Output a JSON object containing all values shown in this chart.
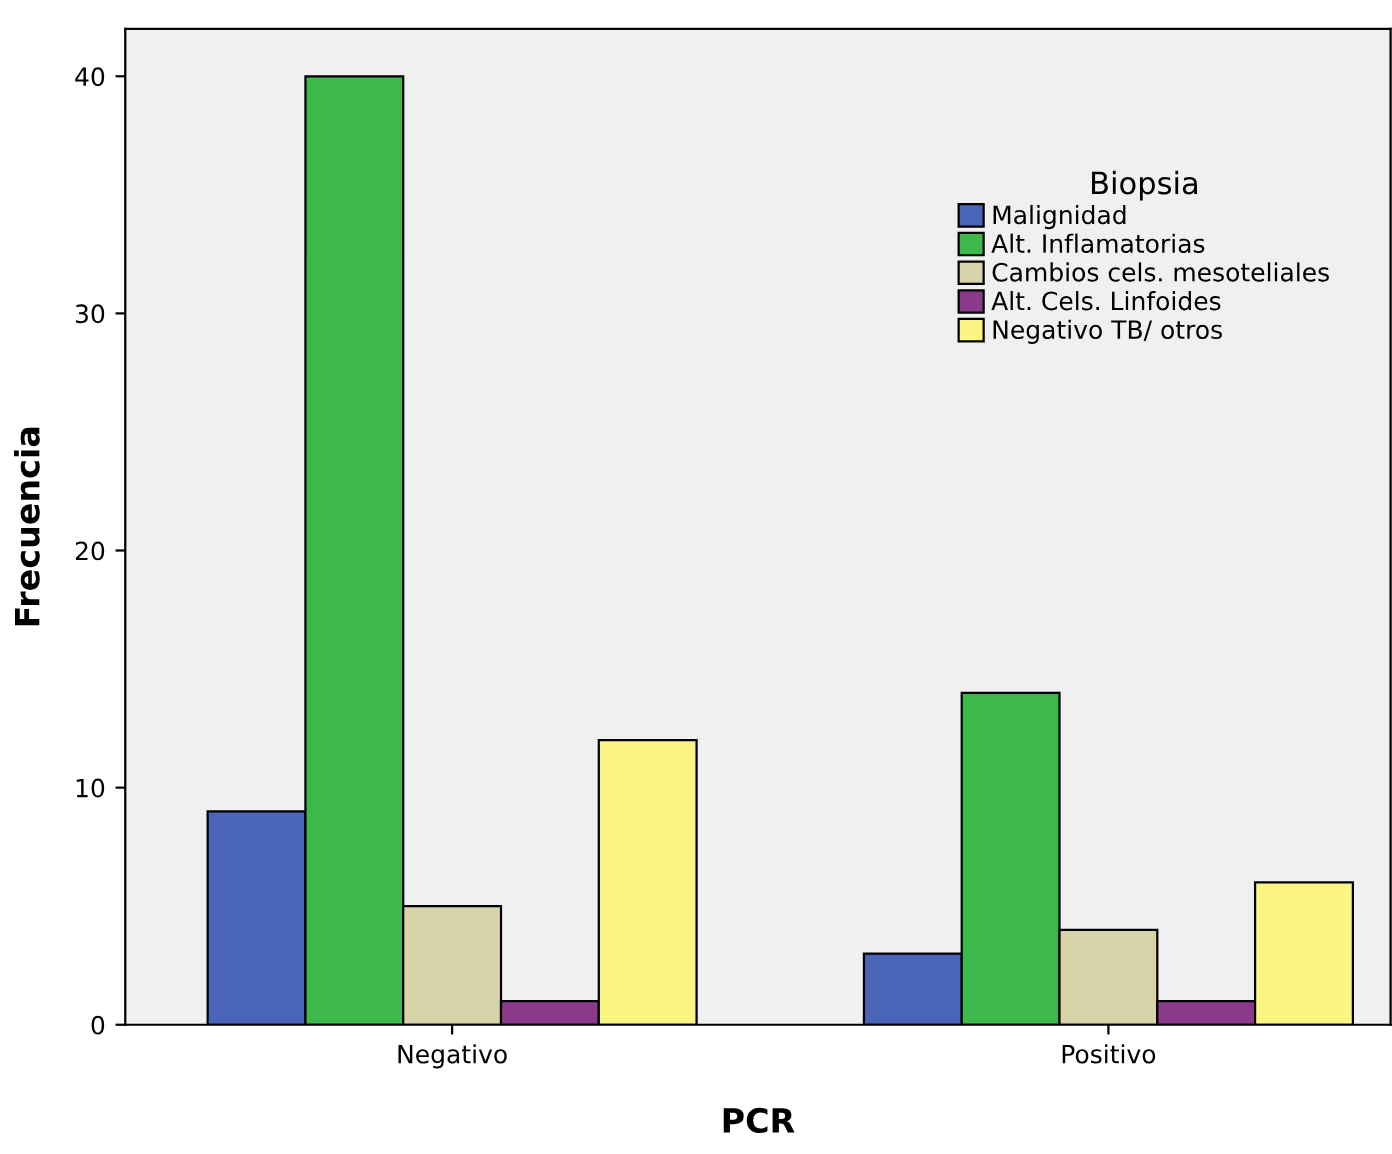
{
  "chart_data": {
    "type": "bar",
    "xlabel": "PCR",
    "ylabel": "Frecuencia",
    "legend_title": "Biopsia",
    "categories": [
      "Negativo",
      "Positivo"
    ],
    "series": [
      {
        "name": "Malignidad",
        "color": "#4a65b8",
        "values": [
          9,
          3
        ]
      },
      {
        "name": "Alt. Inflamatorias",
        "color": "#3cb94a",
        "values": [
          40,
          14
        ]
      },
      {
        "name": "Cambios cels. mesoteliales",
        "color": "#d8d3a8",
        "values": [
          5,
          4
        ]
      },
      {
        "name": "Alt. Cels. Linfoides",
        "color": "#8b3a8b",
        "values": [
          1,
          1
        ]
      },
      {
        "name": "Negativo TB/ otros",
        "color": "#fbf584",
        "values": [
          12,
          6
        ]
      }
    ],
    "ylim": [
      0,
      42
    ],
    "yticks": [
      0,
      10,
      20,
      30,
      40
    ],
    "grid": false,
    "legend": "top right"
  }
}
